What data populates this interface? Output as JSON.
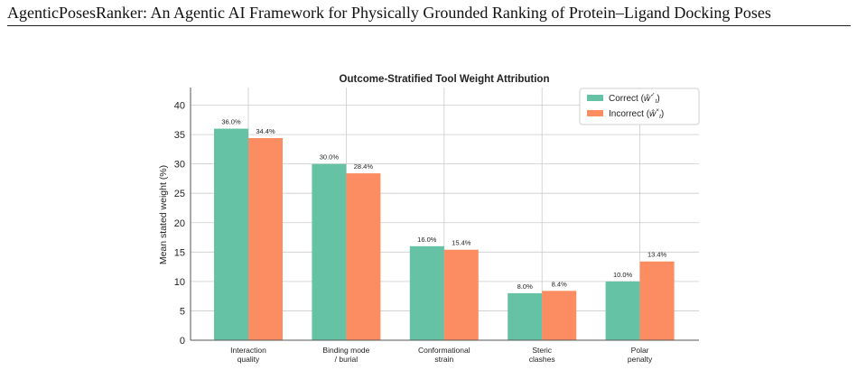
{
  "paper": {
    "running_title": "AgenticPosesRanker: An Agentic AI Framework for Physically Grounded Ranking of Protein–Ligand Docking Poses"
  },
  "colors": {
    "correct": "#66c2a5",
    "incorrect": "#fc8d62",
    "grid": "#cccccc",
    "axis": "#555555"
  },
  "chart_data": {
    "type": "bar",
    "title": "Outcome-Stratified Tool Weight Attribution",
    "xlabel": "",
    "ylabel": "Mean stated weight (%)",
    "ylim": [
      0,
      43
    ],
    "yticks": [
      0,
      5,
      10,
      15,
      20,
      25,
      30,
      35,
      40
    ],
    "grid": true,
    "legend_position": "top-right",
    "categories": [
      [
        "Interaction",
        "quality"
      ],
      [
        "Binding mode",
        "/ burial"
      ],
      [
        "Conformational",
        "strain"
      ],
      [
        "Steric",
        "clashes"
      ],
      [
        "Polar",
        "penalty"
      ]
    ],
    "series": [
      {
        "name": "Correct",
        "symbol": "ŵ",
        "superscript": "✓",
        "color": "#66c2a5",
        "values": [
          36.0,
          30.0,
          16.0,
          8.0,
          10.0
        ],
        "labels": [
          "36.0%",
          "30.0%",
          "16.0%",
          "8.0%",
          "10.0%"
        ]
      },
      {
        "name": "Incorrect",
        "symbol": "ŵ",
        "superscript": "×",
        "color": "#fc8d62",
        "values": [
          34.4,
          28.4,
          15.4,
          8.4,
          13.4
        ],
        "labels": [
          "34.4%",
          "28.4%",
          "15.4%",
          "8.4%",
          "13.4%"
        ]
      }
    ]
  }
}
